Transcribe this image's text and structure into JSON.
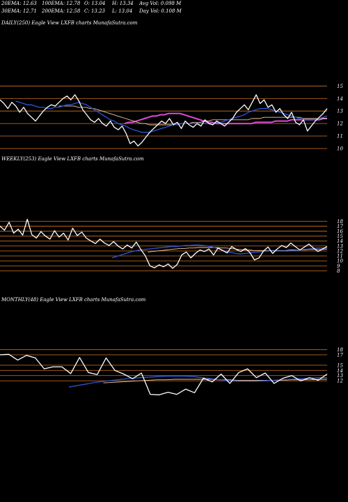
{
  "header": {
    "row1": [
      "20EMA: 12.63",
      "100EMA: 12.78",
      "O: 13.04",
      "H: 13.34",
      "Avg Vol: 0.098 M"
    ],
    "row2": [
      "30EMA: 12.71",
      "200EMA: 12.58",
      "C: 13.23",
      "L: 13.04",
      "Day Vol: 0.108 M"
    ]
  },
  "colors": {
    "background": "#000000",
    "price": "#ffffff",
    "level_line": "#b8651e",
    "ema_fast": "#2d56d6",
    "ema_slow": "#e04ad8",
    "ema_mid": "#f2c8a0"
  },
  "chart_data": [
    {
      "type": "line",
      "title": "DAILY(250) Eagle  View  LXFB charts MunafaSutra.com",
      "ylim": [
        9.5,
        15.3
      ],
      "levels": [
        15,
        14,
        13,
        12,
        11,
        10
      ],
      "yticks": [
        15,
        14,
        13,
        12,
        11,
        10
      ],
      "series": [
        {
          "values": [
            13.9,
            13.6,
            13.2,
            13.7,
            13.4,
            12.9,
            13.3,
            12.8,
            12.5,
            12.2,
            12.6,
            13.0,
            13.3,
            13.5,
            13.4,
            13.7,
            14.0,
            14.2,
            13.9,
            14.3,
            13.8,
            13.1,
            12.7,
            12.3,
            12.1,
            12.4,
            12.0,
            11.8,
            12.2,
            11.7,
            11.5,
            11.8,
            11.2,
            10.4,
            10.6,
            10.2,
            10.5,
            10.9,
            11.3,
            11.6,
            11.9,
            12.2,
            12.0,
            12.4,
            11.9,
            12.1,
            11.6,
            12.2,
            11.9,
            11.7,
            12.0,
            11.8,
            12.3,
            12.0,
            11.9,
            12.2,
            12.0,
            11.8,
            12.1,
            12.4,
            12.9,
            13.2,
            13.5,
            13.1,
            13.7,
            14.3,
            13.6,
            13.9,
            13.3,
            13.5,
            12.9,
            13.2,
            12.7,
            12.4,
            12.9,
            12.1,
            11.9,
            12.3,
            11.4,
            11.8,
            12.2,
            12.5,
            12.8,
            13.2
          ]
        },
        {
          "values": [
            13.8,
            13.7,
            13.6,
            13.5,
            13.5,
            13.4,
            13.3,
            13.3,
            13.2,
            13.2,
            13.3,
            13.3,
            13.4,
            13.5,
            13.5,
            13.6,
            13.7,
            13.6,
            13.5,
            13.3,
            13.1,
            12.9,
            12.7,
            12.5,
            12.3,
            12.2,
            12.0,
            11.9,
            11.8,
            11.6,
            11.5,
            11.4,
            11.3,
            11.3,
            11.3,
            11.4,
            11.5,
            11.6,
            11.7,
            11.8,
            11.9,
            11.9,
            12.0,
            12.0,
            12.0,
            12.0,
            12.0,
            12.0,
            12.0,
            12.0,
            12.0,
            12.1,
            12.1,
            12.2,
            12.3,
            12.4,
            12.5,
            12.6,
            12.7,
            12.9,
            13.0,
            13.1,
            13.2,
            13.2,
            13.2,
            13.1,
            13.0,
            12.9,
            12.8,
            12.7,
            12.6,
            12.5,
            12.4,
            12.3,
            12.3,
            12.3,
            12.3,
            12.4,
            12.5,
            12.6
          ]
        },
        {
          "values": [
            13.4,
            13.4,
            13.4,
            13.4,
            13.4,
            13.3,
            13.3,
            13.3,
            13.2,
            13.2,
            13.1,
            13.0,
            12.9,
            12.8,
            12.7,
            12.6,
            12.5,
            12.4,
            12.3,
            12.2,
            12.1,
            12.0,
            12.0,
            11.9,
            11.9,
            11.9,
            11.9,
            11.9,
            11.9,
            11.9,
            11.9,
            12.0,
            12.0,
            12.0,
            12.1,
            12.1,
            12.1,
            12.2,
            12.2,
            12.3,
            12.3,
            12.3,
            12.3,
            12.3,
            12.3,
            12.3,
            12.3,
            12.3,
            12.3,
            12.4,
            12.4,
            12.4,
            12.5,
            12.5,
            12.5,
            12.5,
            12.5,
            12.5,
            12.5,
            12.5,
            12.5,
            12.5,
            12.4,
            12.4,
            12.4,
            12.4,
            12.4,
            12.4,
            12.4
          ]
        },
        {
          "values": [
            12.0,
            12.1,
            12.1,
            12.2,
            12.3,
            12.4,
            12.5,
            12.6,
            12.6,
            12.7,
            12.7,
            12.8,
            12.8,
            12.8,
            12.8,
            12.7,
            12.6,
            12.5,
            12.4,
            12.3,
            12.2,
            12.1,
            12.1,
            12.0,
            12.0,
            12.0,
            12.0,
            12.0,
            12.0,
            12.0,
            12.0,
            12.0,
            12.0,
            12.1,
            12.1,
            12.1,
            12.1,
            12.1,
            12.2,
            12.2,
            12.2,
            12.2,
            12.3,
            12.3,
            12.3,
            12.3,
            12.3,
            12.3,
            12.3,
            12.3,
            12.4,
            12.4
          ]
        }
      ]
    },
    {
      "type": "line",
      "title": "WEEKLY(253) Eagle  View  LXFB charts MunafaSutra.com",
      "ylim": [
        7.5,
        18.6
      ],
      "levels": [
        18,
        17,
        16,
        15,
        14,
        13,
        12,
        11,
        10,
        9,
        8
      ],
      "yticks": [
        18,
        17,
        16,
        15,
        14,
        13,
        12,
        11,
        10,
        9,
        8
      ],
      "series": [
        {
          "values": [
            17.0,
            16.2,
            17.8,
            15.6,
            16.4,
            15.2,
            18.4,
            15.3,
            14.6,
            15.9,
            15.0,
            14.4,
            16.1,
            14.8,
            15.6,
            14.2,
            16.6,
            15.1,
            15.8,
            14.6,
            14.0,
            13.5,
            14.4,
            13.6,
            13.1,
            13.9,
            13.0,
            12.4,
            13.2,
            12.6,
            13.8,
            12.3,
            11.0,
            9.0,
            8.6,
            9.2,
            8.8,
            9.4,
            8.5,
            9.3,
            11.2,
            11.8,
            10.6,
            11.5,
            12.2,
            11.9,
            12.4,
            11.2,
            12.6,
            12.1,
            11.6,
            12.9,
            12.3,
            11.9,
            12.5,
            11.7,
            10.2,
            10.6,
            12.0,
            12.8,
            11.5,
            12.4,
            13.1,
            12.7,
            13.6,
            12.9,
            12.2,
            12.8,
            13.4,
            12.6,
            11.9,
            12.4,
            12.9
          ]
        },
        {
          "values": [
            10.6,
            10.9,
            11.2,
            11.5,
            11.8,
            12.0,
            12.2,
            12.3,
            12.4,
            12.5,
            12.6,
            12.7,
            12.8,
            12.9,
            12.9,
            13.0,
            13.1,
            13.1,
            13.2,
            13.2,
            13.1,
            13.0,
            12.8,
            12.5,
            12.2,
            11.9,
            11.7,
            11.5,
            11.4,
            11.5,
            11.6,
            11.7,
            11.8,
            11.9,
            12.0,
            12.0,
            12.0,
            12.0,
            12.0,
            12.0,
            12.1,
            12.2,
            12.3,
            12.4,
            12.5,
            12.6,
            12.6,
            12.6
          ]
        },
        {
          "values": [
            11.8,
            11.9,
            12.0,
            12.1,
            12.2,
            12.3,
            12.4,
            12.5,
            12.5,
            12.6,
            12.6,
            12.7,
            12.7,
            12.7,
            12.7,
            12.7,
            12.6,
            12.6,
            12.5,
            12.4,
            12.3,
            12.2,
            12.2,
            12.1,
            12.1,
            12.1,
            12.1,
            12.1,
            12.1,
            12.1,
            12.1,
            12.2,
            12.2,
            12.2,
            12.2,
            12.3,
            12.3,
            12.3,
            12.3,
            12.4
          ]
        }
      ]
    },
    {
      "type": "line",
      "title": "MONTHLY(48) Eagle  View  LXFB charts MunafaSutra.com",
      "ylim": [
        8.0,
        18.6
      ],
      "levels": [
        18,
        17,
        15,
        14,
        13,
        12
      ],
      "yticks": [
        18,
        17,
        15,
        14,
        13,
        12
      ],
      "series": [
        {
          "values": [
            17.0,
            17.1,
            16.0,
            16.9,
            16.4,
            14.3,
            14.7,
            14.7,
            13.4,
            16.5,
            13.6,
            13.2,
            16.4,
            14.0,
            13.3,
            12.4,
            13.5,
            9.4,
            9.3,
            9.8,
            9.4,
            10.4,
            9.7,
            12.5,
            11.8,
            13.3,
            11.5,
            13.6,
            14.3,
            12.6,
            13.5,
            11.5,
            12.5,
            13.0,
            12.0,
            12.6,
            12.1,
            13.3
          ]
        },
        {
          "values": [
            10.8,
            11.1,
            11.4,
            11.7,
            11.9,
            12.1,
            12.3,
            12.5,
            12.6,
            12.7,
            12.8,
            12.9,
            12.9,
            12.9,
            12.8,
            12.6,
            12.4,
            12.2,
            12.0,
            11.9,
            11.9,
            11.9,
            12.0,
            12.1,
            12.2,
            12.3,
            12.4,
            12.5,
            12.6,
            12.6
          ]
        },
        {
          "values": [
            11.6,
            11.7,
            11.8,
            11.9,
            12.0,
            12.1,
            12.2,
            12.2,
            12.3,
            12.3,
            12.3,
            12.3,
            12.3,
            12.2,
            12.2,
            12.1,
            12.1,
            12.1,
            12.1,
            12.1,
            12.1,
            12.2,
            12.2,
            12.2,
            12.3,
            12.3
          ]
        }
      ]
    }
  ]
}
